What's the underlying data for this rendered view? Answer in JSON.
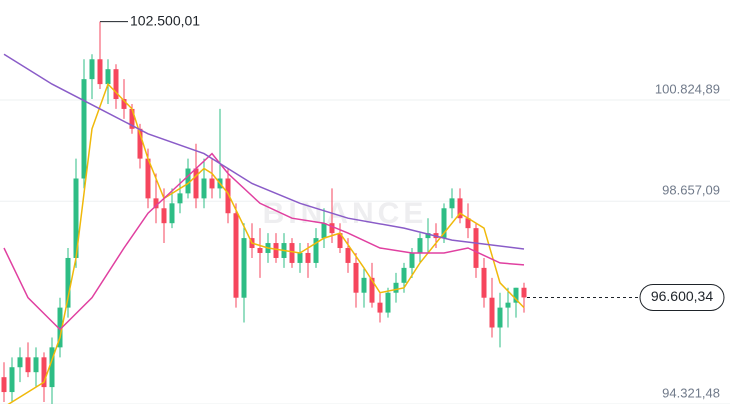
{
  "chart_data": {
    "type": "candlestick",
    "watermark": "BINANCE",
    "ylim": [
      94321.48,
      102963
    ],
    "yticks": [
      {
        "value": 100824.89,
        "label": "100.824,89"
      },
      {
        "value": 98657.09,
        "label": "98.657,09"
      },
      {
        "value": 94321.48,
        "label": "94.321,48"
      }
    ],
    "grid": true,
    "up_color": "#2ebd85",
    "down_color": "#f6465d",
    "open": [
      94895,
      94577,
      95108,
      95320,
      95002,
      95320,
      94683,
      95533,
      96383,
      97445,
      99145,
      101270,
      101695,
      101164,
      101483,
      100845,
      100633,
      100208,
      99570,
      98720,
      98508,
      98189,
      98614,
      98827,
      99358,
      98720,
      99145,
      98933,
      99145,
      98402,
      96595,
      97870,
      97658,
      97552,
      97764,
      97445,
      97764,
      97339,
      97552,
      97339,
      97870,
      98189,
      97977,
      97658,
      97339,
      96702,
      97020,
      96489,
      96277,
      96702,
      96914,
      97233,
      97552,
      97870,
      97977,
      97870,
      98508,
      98720,
      98295,
      98083,
      97233,
      96595,
      95958,
      96383,
      96489,
      96808
    ],
    "high": [
      95214,
      95320,
      95533,
      95639,
      95533,
      95427,
      95745,
      96595,
      97658,
      99570,
      101695,
      101802,
      102500.01,
      101695,
      101589,
      101270,
      100739,
      100314,
      99783,
      99252,
      98933,
      98933,
      99145,
      99570,
      99889,
      99570,
      99570,
      100633,
      99358,
      98614,
      98189,
      98189,
      98083,
      97977,
      97977,
      97977,
      97870,
      97764,
      97764,
      98083,
      98508,
      98933,
      98189,
      97870,
      97552,
      97233,
      97339,
      96702,
      96808,
      97127,
      97339,
      97658,
      97977,
      98295,
      98189,
      98614,
      98933,
      98933,
      98614,
      98189,
      97445,
      97020,
      96702,
      96808,
      96808,
      96914
    ],
    "low": [
      94364,
      94364,
      94789,
      94895,
      94683,
      94364,
      94258,
      95320,
      96170,
      97233,
      98933,
      100845,
      101058,
      100739,
      100633,
      100420,
      100102,
      99358,
      98508,
      98189,
      97764,
      98083,
      98402,
      98720,
      98508,
      98508,
      98720,
      98720,
      98189,
      96383,
      96064,
      97445,
      97020,
      97339,
      97339,
      97233,
      97233,
      97127,
      97020,
      97233,
      97658,
      97764,
      97552,
      97127,
      96383,
      96383,
      96383,
      96064,
      96170,
      96489,
      96702,
      97020,
      97339,
      97552,
      97658,
      97764,
      98295,
      98189,
      97870,
      97020,
      96383,
      95745,
      95533,
      95958,
      96170,
      96277
    ],
    "close": [
      94577,
      95108,
      95320,
      95002,
      95320,
      94683,
      95533,
      96383,
      97445,
      99145,
      101270,
      101695,
      101164,
      101483,
      100845,
      100633,
      100208,
      99570,
      98720,
      98508,
      98189,
      98614,
      98827,
      99358,
      98720,
      99145,
      98933,
      99145,
      98402,
      96595,
      97870,
      97658,
      97552,
      97764,
      97445,
      97764,
      97339,
      97552,
      97339,
      97870,
      98189,
      97977,
      97658,
      97339,
      96702,
      97020,
      96489,
      96277,
      96702,
      96914,
      97233,
      97552,
      97870,
      97977,
      97870,
      98508,
      98720,
      98295,
      98083,
      97233,
      96595,
      95958,
      96383,
      96489,
      96808,
      96600.34
    ],
    "lines": [
      {
        "color": "#f0b90b",
        "x": [
          0,
          5,
          7,
          9,
          11,
          13,
          16,
          18,
          20,
          23,
          25,
          26,
          28,
          31,
          33,
          37,
          40,
          42,
          45,
          47,
          50,
          52,
          55,
          57,
          60,
          62,
          65
        ],
        "values": [
          94258,
          94789,
          95745,
          97445,
          100208,
          101164,
          100633,
          99570,
          98720,
          99039,
          99358,
          99252,
          98827,
          97764,
          97658,
          97552,
          97870,
          97977,
          97233,
          96702,
          96808,
          97339,
          97977,
          98402,
          98083,
          96914,
          96383
        ]
      },
      {
        "color": "#e040a0",
        "x": [
          0,
          3,
          7,
          11,
          15,
          18,
          22,
          26,
          28,
          32,
          36,
          40,
          43,
          47,
          51,
          55,
          58,
          62,
          65
        ],
        "values": [
          97658,
          96595,
          95916,
          96595,
          97658,
          98402,
          99039,
          99677,
          99252,
          98614,
          98295,
          98189,
          97977,
          97658,
          97552,
          97552,
          97658,
          97339,
          97297
        ]
      },
      {
        "color": "#8a5cc8",
        "x": [
          0,
          6,
          12,
          18,
          25,
          31,
          37,
          43,
          50,
          56,
          65
        ],
        "values": [
          101802,
          101164,
          100633,
          100102,
          99677,
          99039,
          98614,
          98295,
          98083,
          97828,
          97637
        ]
      }
    ],
    "high_marker": {
      "value": 102500.01,
      "label": "102.500,01",
      "index": 12
    },
    "last_price": {
      "value": 96600.34,
      "label": "96.600,34"
    }
  }
}
